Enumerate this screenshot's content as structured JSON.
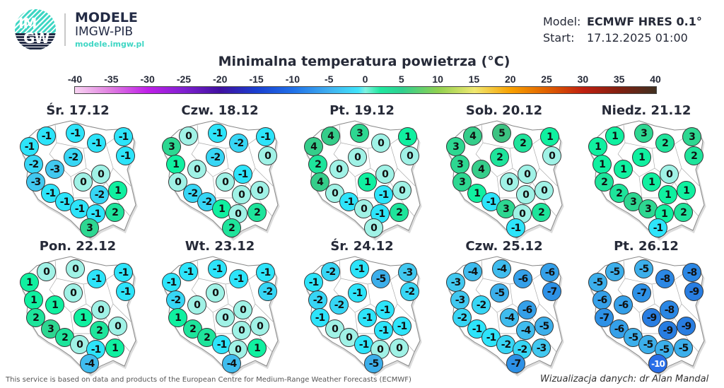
{
  "logo": {
    "text": "IMGW",
    "brand": "MODELE",
    "org": "IMGW-PIB",
    "url": "modele.imgw.pl"
  },
  "meta": {
    "model_label": "Model:",
    "model_value": "ECMWF HRES 0.1°",
    "start_label": "Start:",
    "start_value": "17.12.2025 01:00"
  },
  "title": "Minimalna temperatura powietrza (°C)",
  "colorbar": {
    "ticks": [
      "-40",
      "-35",
      "-30",
      "-25",
      "-20",
      "-15",
      "-10",
      "-5",
      "0",
      "5",
      "10",
      "15",
      "20",
      "25",
      "30",
      "35",
      "40"
    ],
    "min": -40,
    "max": 40
  },
  "days": [
    {
      "label": "Śr. 17.12",
      "values": [
        -1,
        -1,
        -1,
        -1,
        -1,
        -1,
        -2,
        -2,
        -3,
        -3,
        0,
        0,
        -1,
        1,
        -2,
        -1,
        -1,
        -1,
        2,
        3
      ]
    },
    {
      "label": "Czw. 18.12",
      "values": [
        3,
        0,
        -1,
        -2,
        -1,
        0,
        -2,
        1,
        0,
        0,
        -1,
        0,
        -2,
        0,
        0,
        -2,
        1,
        0,
        2,
        2
      ]
    },
    {
      "label": "Pt. 19.12",
      "values": [
        4,
        4,
        3,
        0,
        1,
        0,
        0,
        2,
        0,
        4,
        0,
        1,
        0,
        0,
        -1,
        -1,
        0,
        -1,
        2,
        0
      ]
    },
    {
      "label": "Sob. 20.12",
      "values": [
        3,
        4,
        5,
        2,
        1,
        0,
        2,
        3,
        4,
        3,
        0,
        0,
        1,
        0,
        0,
        -1,
        3,
        0,
        2,
        -1
      ]
    },
    {
      "label": "Niedz. 21.12",
      "values": [
        1,
        1,
        3,
        2,
        3,
        2,
        1,
        1,
        1,
        2,
        0,
        1,
        2,
        1,
        1,
        3,
        3,
        1,
        2,
        -1
      ]
    },
    {
      "label": "Pon. 22.12",
      "values": [
        1,
        0,
        0,
        -1,
        -1,
        -1,
        0,
        1,
        1,
        2,
        0,
        1,
        3,
        0,
        2,
        2,
        0,
        -1,
        1,
        -4
      ]
    },
    {
      "label": "Wt. 23.12",
      "values": [
        -1,
        -1,
        -1,
        -1,
        -1,
        -2,
        0,
        -2,
        0,
        1,
        0,
        0,
        2,
        0,
        0,
        2,
        -1,
        0,
        1,
        -4
      ]
    },
    {
      "label": "Śr. 24.12",
      "values": [
        -1,
        -2,
        -1,
        -5,
        -3,
        -2,
        -1,
        -2,
        -2,
        -1,
        -1,
        -1,
        0,
        -1,
        -1,
        0,
        -1,
        0,
        0,
        -5
      ]
    },
    {
      "label": "Czw. 25.12",
      "values": [
        -3,
        -4,
        -4,
        -6,
        -6,
        -7,
        -5,
        -3,
        -2,
        -2,
        -6,
        -4,
        -1,
        -5,
        -4,
        -1,
        -2,
        -2,
        -3,
        -7
      ]
    },
    {
      "label": "Pt. 26.12",
      "values": [
        -5,
        -5,
        -5,
        -8,
        -8,
        -9,
        -7,
        -6,
        -6,
        -7,
        -8,
        -9,
        -6,
        -9,
        -9,
        -5,
        -5,
        -5,
        -5,
        -10
      ]
    }
  ],
  "footer": {
    "left": "This service is based on data and products of the European Centre for Medium-Range Weather Forecasts (ECMWF)",
    "right": "Wizualizacja danych: dr Alan Mandal"
  }
}
